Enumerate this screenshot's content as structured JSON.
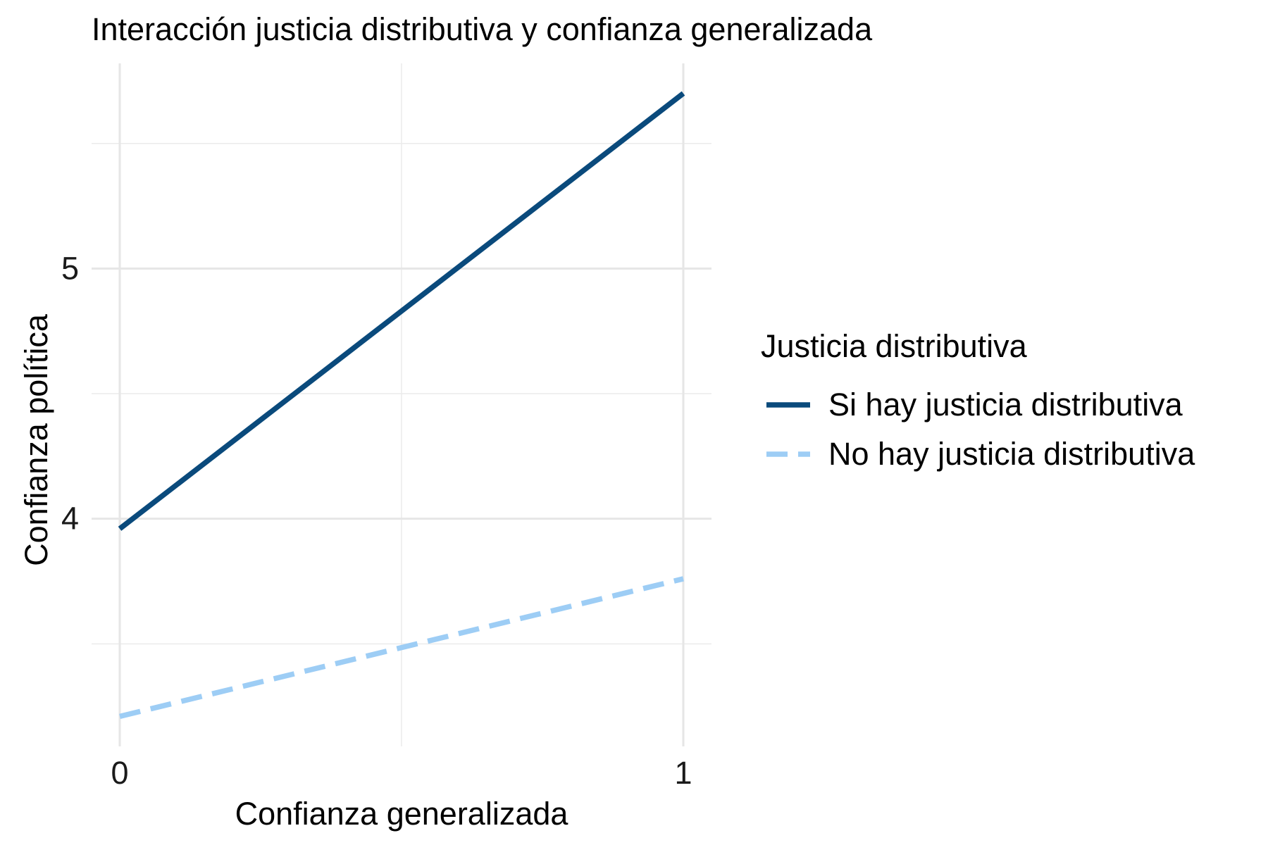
{
  "chart_data": {
    "type": "line",
    "title": "Interacción justicia distributiva y confianza generalizada",
    "xlabel": "Confianza generalizada",
    "ylabel": "Confianza política",
    "x": [
      0,
      1
    ],
    "x_ticks": [
      "0",
      "1"
    ],
    "y_ticks": [
      "4",
      "5"
    ],
    "xlim": [
      -0.05,
      1.05
    ],
    "ylim": [
      3.09,
      5.82
    ],
    "grid": true,
    "legend": {
      "title": "Justicia distributiva",
      "placement": "right"
    },
    "series": [
      {
        "name": "Si hay justicia distributiva",
        "values": [
          3.96,
          5.7
        ],
        "color": "#0a4a7c",
        "dash": "solid"
      },
      {
        "name": "No hay justicia distributiva",
        "values": [
          3.21,
          3.76
        ],
        "color": "#9dcdf5",
        "dash": "dashed"
      }
    ]
  }
}
